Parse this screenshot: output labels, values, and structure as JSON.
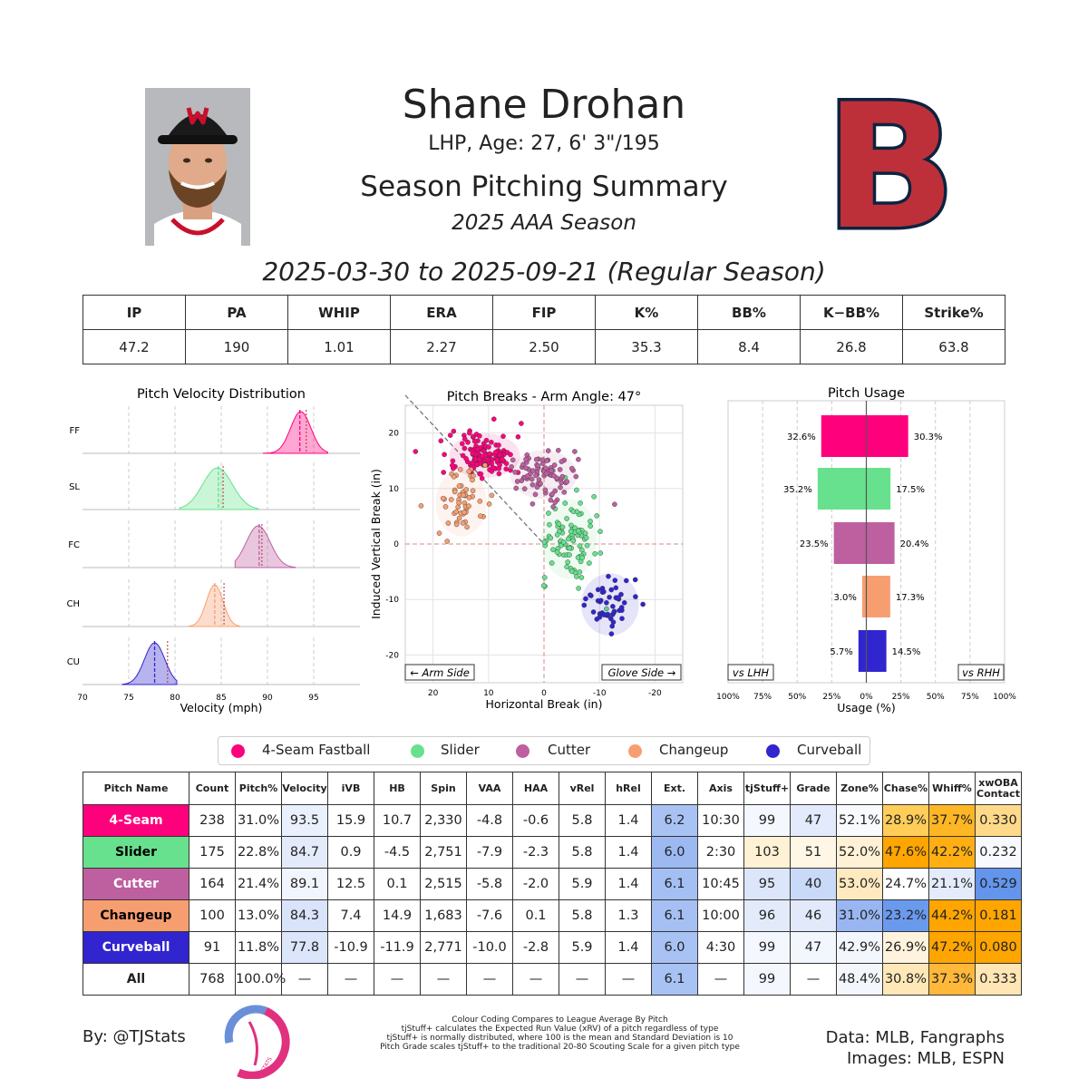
{
  "header": {
    "name": "Shane Drohan",
    "bio": "LHP, Age: 27, 6' 3\"/195",
    "title": "Season Pitching Summary",
    "season": "2025 AAA Season",
    "date_range": "2025-03-30 to 2025-09-21 (Regular Season)"
  },
  "season_stats": {
    "headers": [
      "IP",
      "PA",
      "WHIP",
      "ERA",
      "FIP",
      "K%",
      "BB%",
      "K−BB%",
      "Strike%"
    ],
    "values": [
      "47.2",
      "190",
      "1.01",
      "2.27",
      "2.50",
      "35.3",
      "8.4",
      "26.8",
      "63.8"
    ]
  },
  "colors": {
    "FF": "#FF007D",
    "SL": "#67E18D",
    "FC": "#BE5FA0",
    "CH": "#F79E70",
    "CU": "#3025CE",
    "logo_red": "#BD3039",
    "logo_navy": "#0C2340",
    "pitch_scale_blue": "#6495ED",
    "pitch_scale_orange": "#FFA500"
  },
  "chart_data": [
    {
      "type": "area",
      "title": "Pitch Velocity Distribution",
      "xlabel": "Velocity (mph)",
      "x_ticks": [
        "70",
        "75",
        "80",
        "85",
        "90",
        "95"
      ],
      "xlim": [
        70,
        100
      ],
      "series": [
        {
          "name": "FF",
          "range": [
            89.5,
            96.5
          ],
          "peak": 93.6,
          "spread": 1.1,
          "mean": 93.5,
          "league_mean": 94.2
        },
        {
          "name": "SL",
          "range": [
            80.5,
            89.0
          ],
          "peak": 84.6,
          "spread": 1.6,
          "mean": 84.7,
          "league_mean": 85.2
        },
        {
          "name": "FC",
          "range": [
            86.5,
            93.0
          ],
          "peak": 89.0,
          "spread": 1.3,
          "mean": 89.1,
          "league_mean": 89.4
        },
        {
          "name": "CH",
          "range": [
            81.5,
            87.0
          ],
          "peak": 84.3,
          "spread": 0.9,
          "mean": 84.3,
          "league_mean": 85.3
        },
        {
          "name": "CU",
          "range": [
            74.3,
            80.2
          ],
          "peak": 77.8,
          "spread": 1.1,
          "mean": 77.8,
          "league_mean": 79.2
        }
      ]
    },
    {
      "type": "scatter",
      "title": "Pitch Breaks - Arm Angle: 47°",
      "xlabel": "Horizontal Break (in)",
      "ylabel": "Induced Vertical Break (in)",
      "xlim": [
        25,
        -25
      ],
      "ylim": [
        -25,
        25
      ],
      "x_ticks": [
        "20",
        "10",
        "0",
        "-10",
        "-20"
      ],
      "y_ticks": [
        "20",
        "10",
        "0",
        "-10",
        "-20"
      ],
      "arm_side_label": "← Arm Side",
      "glove_side_label": "Glove Side →",
      "arm_angle_deg": 47,
      "clusters": [
        {
          "name": "FF",
          "center": [
            10.7,
            15.9
          ],
          "spread": [
            3.2,
            2.0
          ],
          "count": 238
        },
        {
          "name": "SL",
          "center": [
            -4.5,
            0.9
          ],
          "spread": [
            2.5,
            3.6
          ],
          "count": 175
        },
        {
          "name": "FC",
          "center": [
            0.1,
            12.5
          ],
          "spread": [
            3.0,
            2.2
          ],
          "count": 164
        },
        {
          "name": "CH",
          "center": [
            14.9,
            7.4
          ],
          "spread": [
            2.3,
            3.0
          ],
          "count": 100
        },
        {
          "name": "CU",
          "center": [
            -11.9,
            -10.9
          ],
          "spread": [
            2.6,
            2.8
          ],
          "count": 91
        }
      ]
    },
    {
      "type": "bar",
      "title": "Pitch Usage",
      "xlabel": "Usage (%)",
      "x_ticks": [
        "100%",
        "75%",
        "50%",
        "25%",
        "0%",
        "25%",
        "50%",
        "75%",
        "100%"
      ],
      "left_label": "vs LHH",
      "right_label": "vs RHH",
      "categories": [
        "FF",
        "SL",
        "FC",
        "CH",
        "CU"
      ],
      "series": [
        {
          "name": "vs LHH",
          "values": [
            32.6,
            35.2,
            23.5,
            3.0,
            5.7
          ]
        },
        {
          "name": "vs RHH",
          "values": [
            30.3,
            17.5,
            20.4,
            17.3,
            14.5
          ]
        }
      ],
      "value_labels_lhh": [
        "32.6%",
        "35.2%",
        "23.5%",
        "3.0%",
        "5.7%"
      ],
      "value_labels_rhh": [
        "30.3%",
        "17.5%",
        "20.4%",
        "17.3%",
        "14.5%"
      ]
    }
  ],
  "legend": [
    {
      "code": "FF",
      "label": "4-Seam Fastball"
    },
    {
      "code": "SL",
      "label": "Slider"
    },
    {
      "code": "FC",
      "label": "Cutter"
    },
    {
      "code": "CH",
      "label": "Changeup"
    },
    {
      "code": "CU",
      "label": "Curveball"
    }
  ],
  "pitch_table": {
    "headers": [
      "Pitch Name",
      "Count",
      "Pitch%",
      "Velocity",
      "iVB",
      "HB",
      "Spin",
      "VAA",
      "HAA",
      "vRel",
      "hRel",
      "Ext.",
      "Axis",
      "tjStuff+",
      "Grade",
      "Zone%",
      "Chase%",
      "Whiff%",
      "xwOBA Contact"
    ],
    "rows": [
      {
        "code": "FF",
        "cells": [
          "4-Seam",
          "238",
          "31.0%",
          "93.5",
          "15.9",
          "10.7",
          "2,330",
          "-4.8",
          "-0.6",
          "5.8",
          "1.4",
          "6.2",
          "10:30",
          "99",
          "47",
          "52.1%",
          "28.9%",
          "37.7%",
          "0.330"
        ]
      },
      {
        "code": "SL",
        "cells": [
          "Slider",
          "175",
          "22.8%",
          "84.7",
          "0.9",
          "-4.5",
          "2,751",
          "-7.9",
          "-2.3",
          "5.8",
          "1.4",
          "6.0",
          "2:30",
          "103",
          "51",
          "52.0%",
          "47.6%",
          "42.2%",
          "0.232"
        ]
      },
      {
        "code": "FC",
        "cells": [
          "Cutter",
          "164",
          "21.4%",
          "89.1",
          "12.5",
          "0.1",
          "2,515",
          "-5.8",
          "-2.0",
          "5.9",
          "1.4",
          "6.1",
          "10:45",
          "95",
          "40",
          "53.0%",
          "24.7%",
          "21.1%",
          "0.529"
        ]
      },
      {
        "code": "CH",
        "cells": [
          "Changeup",
          "100",
          "13.0%",
          "84.3",
          "7.4",
          "14.9",
          "1,683",
          "-7.6",
          "0.1",
          "5.8",
          "1.3",
          "6.1",
          "10:00",
          "96",
          "46",
          "31.0%",
          "23.2%",
          "44.2%",
          "0.181"
        ]
      },
      {
        "code": "CU",
        "cells": [
          "Curveball",
          "91",
          "11.8%",
          "77.8",
          "-10.9",
          "-11.9",
          "2,771",
          "-10.0",
          "-2.8",
          "5.9",
          "1.4",
          "6.0",
          "4:30",
          "99",
          "47",
          "42.9%",
          "26.9%",
          "47.2%",
          "0.080"
        ]
      },
      {
        "code": "ALL",
        "cells": [
          "All",
          "768",
          "100.0%",
          "—",
          "—",
          "—",
          "—",
          "—",
          "—",
          "—",
          "—",
          "6.1",
          "—",
          "99",
          "—",
          "48.4%",
          "30.8%",
          "37.3%",
          "0.333"
        ]
      }
    ],
    "cell_colors": [
      [
        "",
        "",
        "",
        "#EAF0FC",
        "",
        "",
        "",
        "",
        "",
        "",
        "",
        "#A9C2F4",
        "",
        "#F4F7FE",
        "#E2EAFB",
        "#F8FAFE",
        "#FFCD58",
        "#FFB624",
        "#FFD98A"
      ],
      [
        "",
        "",
        "",
        "#E3EBFB",
        "",
        "",
        "",
        "",
        "",
        "",
        "",
        "#9DB9F2",
        "",
        "#FFF1D4",
        "#FFF6E6",
        "#FFF1D6",
        "#FFA500",
        "#FFAF12",
        "#F7F9FE"
      ],
      [
        "",
        "",
        "",
        "#F1F5FD",
        "",
        "",
        "",
        "",
        "",
        "",
        "",
        "#A4BFF3",
        "",
        "#DCE6FA",
        "#C9D9F8",
        "#FFEAC0",
        "#FFFFFF",
        "#E4EBFB",
        "#6495ED"
      ],
      [
        "",
        "",
        "",
        "#D9E3FA",
        "",
        "",
        "",
        "",
        "",
        "",
        "",
        "#A6C0F4",
        "",
        "#E3EBFB",
        "#E1E9FB",
        "#99B6F2",
        "#6A9AEE",
        "#FFA500",
        "#FFA500"
      ],
      [
        "",
        "",
        "",
        "#DCE6FA",
        "",
        "",
        "",
        "",
        "",
        "",
        "",
        "#A9C2F4",
        "",
        "#F4F7FE",
        "#F2F6FD",
        "#F2F6FD",
        "#FFF3DD",
        "#FFA500",
        "#FFA500"
      ],
      [
        "",
        "",
        "",
        "",
        "",
        "",
        "",
        "",
        "",
        "",
        "",
        "#A9C2F4",
        "",
        "#F4F7FE",
        "",
        "#F3F6FD",
        "#FFE8B8",
        "#FFB83A",
        "#FFE6B4"
      ]
    ]
  },
  "footer": {
    "by": "By: @TJStats",
    "notes": [
      "Colour Coding Compares to League Average By Pitch",
      "tjStuff+ calculates the Expected Run Value (xRV) of a pitch regardless of type",
      "tjStuff+ is normally distributed, where 100 is the mean and Standard Deviation is 10",
      "Pitch Grade scales tjStuff+ to the traditional 20-80 Scouting Scale for a given pitch type"
    ],
    "data_source": "Data: MLB, Fangraphs",
    "images_source": "Images: MLB, ESPN",
    "logo_text": "STATS"
  }
}
